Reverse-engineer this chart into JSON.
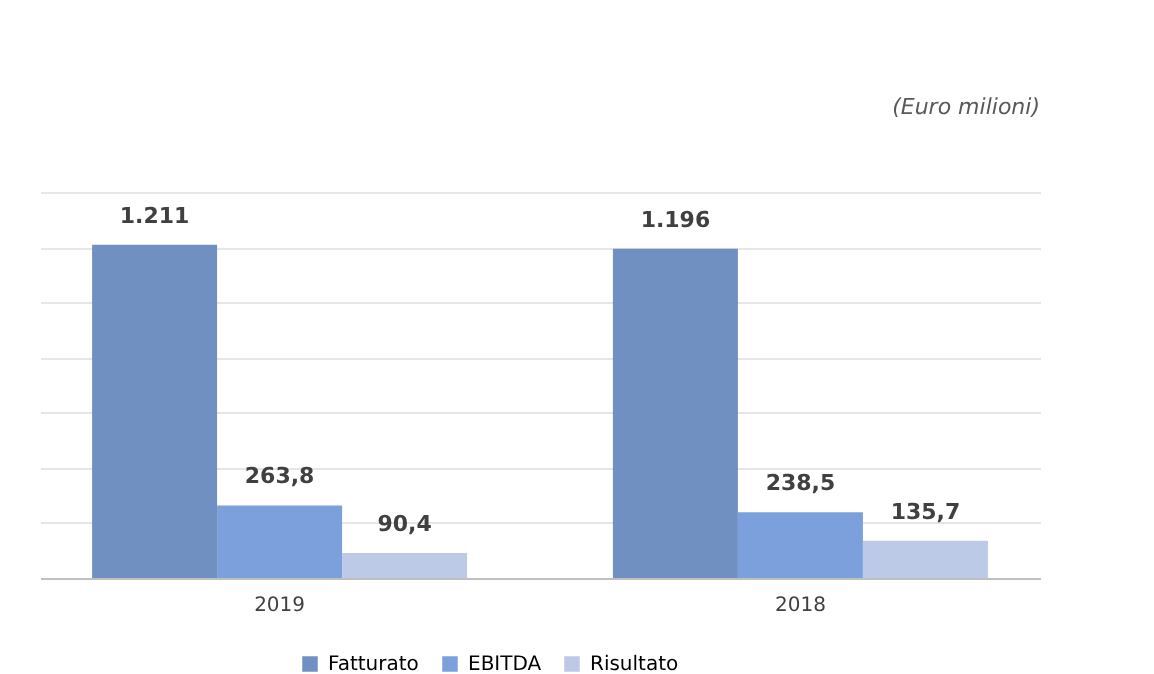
{
  "chart_data": {
    "type": "bar",
    "categories": [
      "2019",
      "2018"
    ],
    "series": [
      {
        "name": "Fatturato",
        "color": "#7190c2",
        "values": [
          1211,
          1196
        ],
        "value_labels": [
          "1.211",
          "1.196"
        ]
      },
      {
        "name": "EBITDA",
        "color": "#7ba0dc",
        "values": [
          263.8,
          238.5
        ],
        "value_labels": [
          "263,8",
          "238,5"
        ]
      },
      {
        "name": "Risultato",
        "color": "#bccae8",
        "values": [
          90.4,
          135.7
        ],
        "value_labels": [
          "90,4",
          "135,7"
        ]
      }
    ],
    "tick_labels": "x",
    "grid": "y",
    "legend": "bottom",
    "annotations": [
      "(Euro milioni)"
    ]
  }
}
